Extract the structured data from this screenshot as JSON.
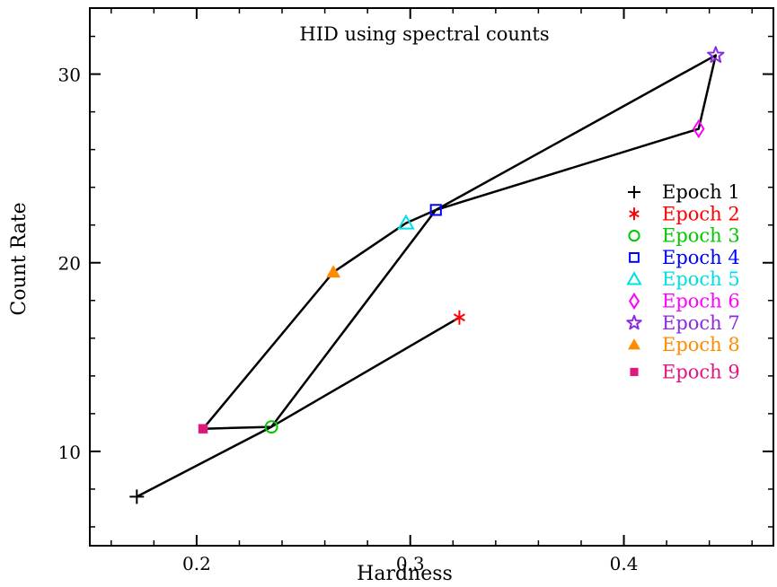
{
  "chart_data": {
    "type": "scatter",
    "title": "HID using spectral counts",
    "xlabel": "Hardness",
    "ylabel": "Count Rate",
    "xlim": [
      0.15,
      0.47
    ],
    "ylim": [
      5,
      33.5
    ],
    "x_ticks": [
      {
        "value": 0.2,
        "label": "0.2"
      },
      {
        "value": 0.3,
        "label": "0.3"
      },
      {
        "value": 0.4,
        "label": "0.4"
      }
    ],
    "y_ticks": [
      {
        "value": 10,
        "label": "10"
      },
      {
        "value": 20,
        "label": "20"
      },
      {
        "value": 30,
        "label": "30"
      }
    ],
    "grid": false,
    "legend_position": "right",
    "connected_path_order": [
      1,
      3,
      2,
      3,
      4,
      7,
      6,
      4,
      3,
      9,
      8,
      5,
      4
    ],
    "series": [
      {
        "name": "Epoch 1",
        "marker": "plus",
        "color": "#000000",
        "x": 0.172,
        "y": 7.6
      },
      {
        "name": "Epoch 2",
        "marker": "asterisk",
        "color": "#ff0000",
        "x": 0.323,
        "y": 17.1
      },
      {
        "name": "Epoch 3",
        "marker": "circle",
        "color": "#00c800",
        "x": 0.235,
        "y": 11.3
      },
      {
        "name": "Epoch 4",
        "marker": "square",
        "color": "#0000ff",
        "x": 0.312,
        "y": 22.8
      },
      {
        "name": "Epoch 5",
        "marker": "triangle",
        "color": "#00e0e0",
        "x": 0.298,
        "y": 22.1
      },
      {
        "name": "Epoch 6",
        "marker": "diamond",
        "color": "#ff00ff",
        "x": 0.435,
        "y": 27.1
      },
      {
        "name": "Epoch 7",
        "marker": "star",
        "color": "#8a2be2",
        "x": 0.443,
        "y": 31.0
      },
      {
        "name": "Epoch 8",
        "marker": "filled-triangle",
        "color": "#ff8c00",
        "x": 0.264,
        "y": 19.5
      },
      {
        "name": "Epoch 9",
        "marker": "filled-square",
        "color": "#e0157e",
        "x": 0.203,
        "y": 11.2
      }
    ]
  }
}
